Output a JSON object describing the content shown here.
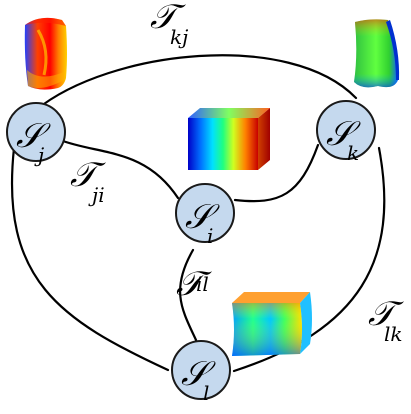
{
  "nodes": {
    "j": {
      "symbol": "𝒮",
      "sub": "j"
    },
    "i": {
      "symbol": "𝒮",
      "sub": "i"
    },
    "k": {
      "symbol": "𝒮",
      "sub": "k"
    },
    "l": {
      "symbol": "𝒮",
      "sub": "l"
    }
  },
  "edges": {
    "kj": {
      "symbol": "𝒯",
      "sub": "kj"
    },
    "ji": {
      "symbol": "𝒯",
      "sub": "ji"
    },
    "il": {
      "symbol": "𝒯",
      "sub": "il"
    },
    "lk": {
      "symbol": "𝒯",
      "sub": "lk"
    }
  },
  "colors": {
    "node_fill": "#c5d9ee",
    "stroke": "#000000"
  }
}
